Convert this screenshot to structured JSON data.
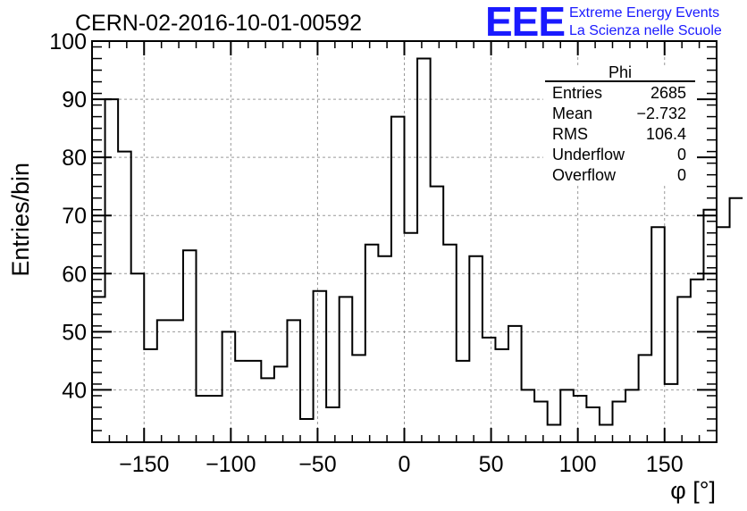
{
  "chart_data": {
    "type": "histogram",
    "title": "CERN-02-2016-10-01-00592",
    "xlabel": "φ [°]",
    "ylabel": "Entries/bin",
    "xlim": [
      -180,
      180
    ],
    "ylim": [
      31,
      100
    ],
    "grid": true,
    "bin_width": 7.5,
    "x_ticks": [
      -150,
      -100,
      -50,
      0,
      50,
      100,
      150
    ],
    "y_ticks": [
      40,
      50,
      60,
      70,
      80,
      90,
      100
    ],
    "values": [
      56,
      90,
      81,
      60,
      47,
      52,
      52,
      64,
      39,
      39,
      50,
      45,
      45,
      42,
      44,
      52,
      35,
      57,
      37,
      56,
      46,
      65,
      63,
      87,
      67,
      97,
      75,
      65,
      45,
      63,
      49,
      47,
      51,
      40,
      38,
      34,
      40,
      39,
      37,
      34,
      38,
      40,
      46,
      68,
      41,
      56,
      59,
      71,
      68,
      73
    ],
    "stats": {
      "title": "Phi",
      "rows": [
        {
          "label": "Entries",
          "value": "2685"
        },
        {
          "label": "Mean",
          "value": "−2.732"
        },
        {
          "label": "RMS",
          "value": "106.4"
        },
        {
          "label": "Underflow",
          "value": "0"
        },
        {
          "label": "Overflow",
          "value": "0"
        }
      ]
    }
  },
  "logo": {
    "mark": "EEE",
    "line1": "Extreme Energy Events",
    "line2": "La Scienza nelle Scuole",
    "color": "#1a1aff"
  },
  "colors": {
    "line": "#000000",
    "grid": "#999999"
  }
}
